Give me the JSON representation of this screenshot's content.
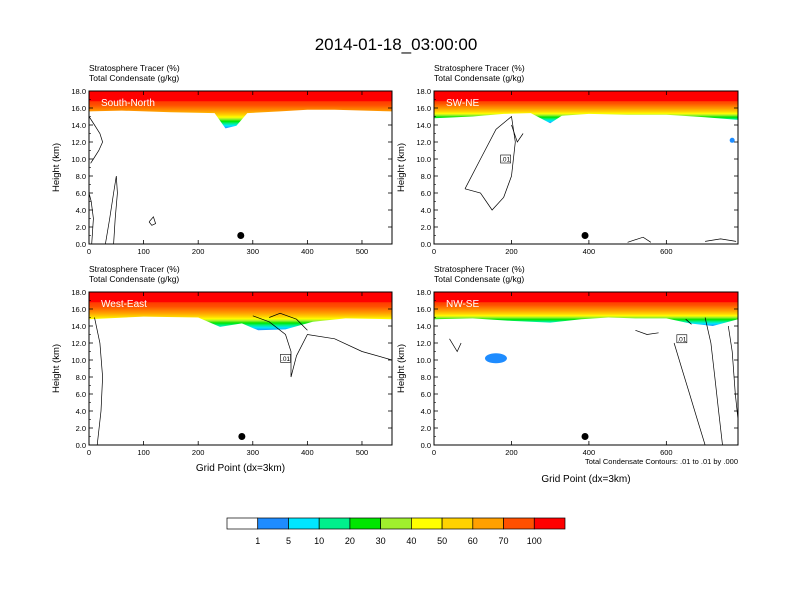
{
  "title": "2014-01-18_03:00:00",
  "colorbar": {
    "colors": [
      "#ffffff",
      "#1e8cff",
      "#00e6ff",
      "#00f08c",
      "#00e600",
      "#a0f02d",
      "#ffff00",
      "#ffd200",
      "#ffa000",
      "#ff5000",
      "#ff0000"
    ],
    "labels": [
      "1",
      "5",
      "10",
      "20",
      "30",
      "40",
      "50",
      "60",
      "70",
      "100"
    ]
  },
  "footnote": "Total Condensate Contours: .01 to .01 by .000",
  "chart_data": [
    {
      "type": "heatmap",
      "panel_label": "South-North",
      "subtitle_line1": "Stratosphere Tracer   (%)",
      "subtitle_line2": "Total Condensate   (g/kg)",
      "ylabel": "Height (km)",
      "xlabel": "",
      "xlim": [
        0,
        555
      ],
      "ylim": [
        0,
        18
      ],
      "xticks": [
        0,
        100,
        200,
        300,
        400,
        500
      ],
      "yticks": [
        "0.0",
        "2.0",
        "4.0",
        "6.0",
        "8.0",
        "10.0",
        "12.0",
        "14.0",
        "16.0",
        "18.0"
      ],
      "tracer_base_km": [
        [
          0,
          15.6
        ],
        [
          60,
          15.7
        ],
        [
          150,
          15.5
        ],
        [
          230,
          15.4
        ],
        [
          250,
          13.6
        ],
        [
          270,
          13.9
        ],
        [
          290,
          15.4
        ],
        [
          350,
          15.6
        ],
        [
          400,
          15.8
        ],
        [
          450,
          15.8
        ],
        [
          555,
          15.6
        ]
      ],
      "marker": {
        "x": 278,
        "y_km": 1.0
      },
      "contour_label": ""
    },
    {
      "type": "heatmap",
      "panel_label": "SW-NE",
      "subtitle_line1": "Stratosphere Tracer   (%)",
      "subtitle_line2": "Total Condensate   (g/kg)",
      "ylabel": "Height (km)",
      "xlabel": "",
      "xlim": [
        0,
        785
      ],
      "ylim": [
        0,
        18
      ],
      "xticks": [
        0,
        200,
        400,
        600
      ],
      "yticks": [
        "0.0",
        "2.0",
        "4.0",
        "6.0",
        "8.0",
        "10.0",
        "12.0",
        "14.0",
        "16.0",
        "18.0"
      ],
      "tracer_base_km": [
        [
          0,
          14.8
        ],
        [
          100,
          15.0
        ],
        [
          180,
          15.3
        ],
        [
          250,
          15.4
        ],
        [
          300,
          14.2
        ],
        [
          330,
          15.1
        ],
        [
          400,
          15.3
        ],
        [
          500,
          15.2
        ],
        [
          600,
          15.2
        ],
        [
          700,
          14.9
        ],
        [
          785,
          14.6
        ]
      ],
      "marker": {
        "x": 390,
        "y_km": 1.0
      },
      "contour_label": ".01"
    },
    {
      "type": "heatmap",
      "panel_label": "West-East",
      "subtitle_line1": "Stratosphere Tracer   (%)",
      "subtitle_line2": "Total Condensate   (g/kg)",
      "ylabel": "Height (km)",
      "xlabel": "Grid Point (dx=3km)",
      "xlim": [
        0,
        555
      ],
      "ylim": [
        0,
        18
      ],
      "xticks": [
        0,
        100,
        200,
        300,
        400,
        500
      ],
      "yticks": [
        "0.0",
        "2.0",
        "4.0",
        "6.0",
        "8.0",
        "10.0",
        "12.0",
        "14.0",
        "16.0",
        "18.0"
      ],
      "tracer_base_km": [
        [
          0,
          14.8
        ],
        [
          100,
          15.1
        ],
        [
          200,
          15.0
        ],
        [
          240,
          13.9
        ],
        [
          280,
          14.3
        ],
        [
          310,
          13.5
        ],
        [
          360,
          13.6
        ],
        [
          410,
          14.5
        ],
        [
          470,
          14.9
        ],
        [
          555,
          14.8
        ]
      ],
      "marker": {
        "x": 280,
        "y_km": 1.0
      },
      "contour_label": ".01"
    },
    {
      "type": "heatmap",
      "panel_label": "NW-SE",
      "subtitle_line1": "Stratosphere Tracer   (%)",
      "subtitle_line2": "Total Condensate   (g/kg)",
      "ylabel": "Height (km)",
      "xlabel": "Grid Point (dx=3km)",
      "xlim": [
        0,
        785
      ],
      "ylim": [
        0,
        18
      ],
      "xticks": [
        0,
        200,
        400,
        600
      ],
      "yticks": [
        "0.0",
        "2.0",
        "4.0",
        "6.0",
        "8.0",
        "10.0",
        "12.0",
        "14.0",
        "16.0",
        "18.0"
      ],
      "tracer_base_km": [
        [
          0,
          14.8
        ],
        [
          100,
          14.9
        ],
        [
          200,
          14.6
        ],
        [
          300,
          14.4
        ],
        [
          380,
          14.8
        ],
        [
          450,
          15.0
        ],
        [
          520,
          14.9
        ],
        [
          600,
          14.9
        ],
        [
          660,
          14.3
        ],
        [
          720,
          14.0
        ],
        [
          785,
          14.8
        ]
      ],
      "marker": {
        "x": 390,
        "y_km": 1.0
      },
      "contour_label": ".01"
    }
  ]
}
